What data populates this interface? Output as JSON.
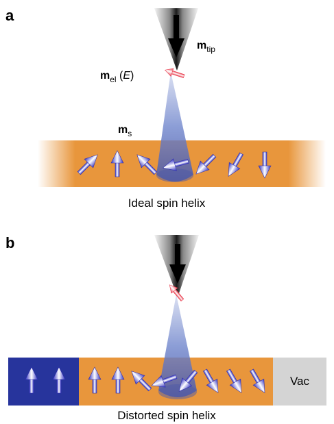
{
  "panel_a": {
    "label": "a",
    "caption": "Ideal spin helix",
    "m_tip": {
      "main": "m",
      "sub": "tip"
    },
    "m_el": {
      "main": "m",
      "sub": "el",
      "arg_open": " (",
      "arg": "E",
      "arg_close": ")"
    },
    "m_s": {
      "main": "m",
      "sub": "s"
    },
    "spin_angles_deg": [
      -135,
      -180,
      135,
      75,
      45,
      30,
      0
    ]
  },
  "panel_b": {
    "label": "b",
    "caption": "Distorted spin helix",
    "vacuum_label": "Vac",
    "ferromagnet_spin_angles_deg": [
      180,
      180
    ],
    "spin_angles_deg": [
      180,
      180,
      135,
      70,
      40,
      -30,
      -30,
      -30
    ]
  },
  "colors": {
    "helix_orange": "#e8963c",
    "ferromagnet_blue": "#27349c",
    "vacuum_gray": "#d4d4d4",
    "cone_blue": "#6f85cc",
    "electron_moment_red": "#e8384a",
    "spin_arrow_blue": "#3c3cc8"
  }
}
